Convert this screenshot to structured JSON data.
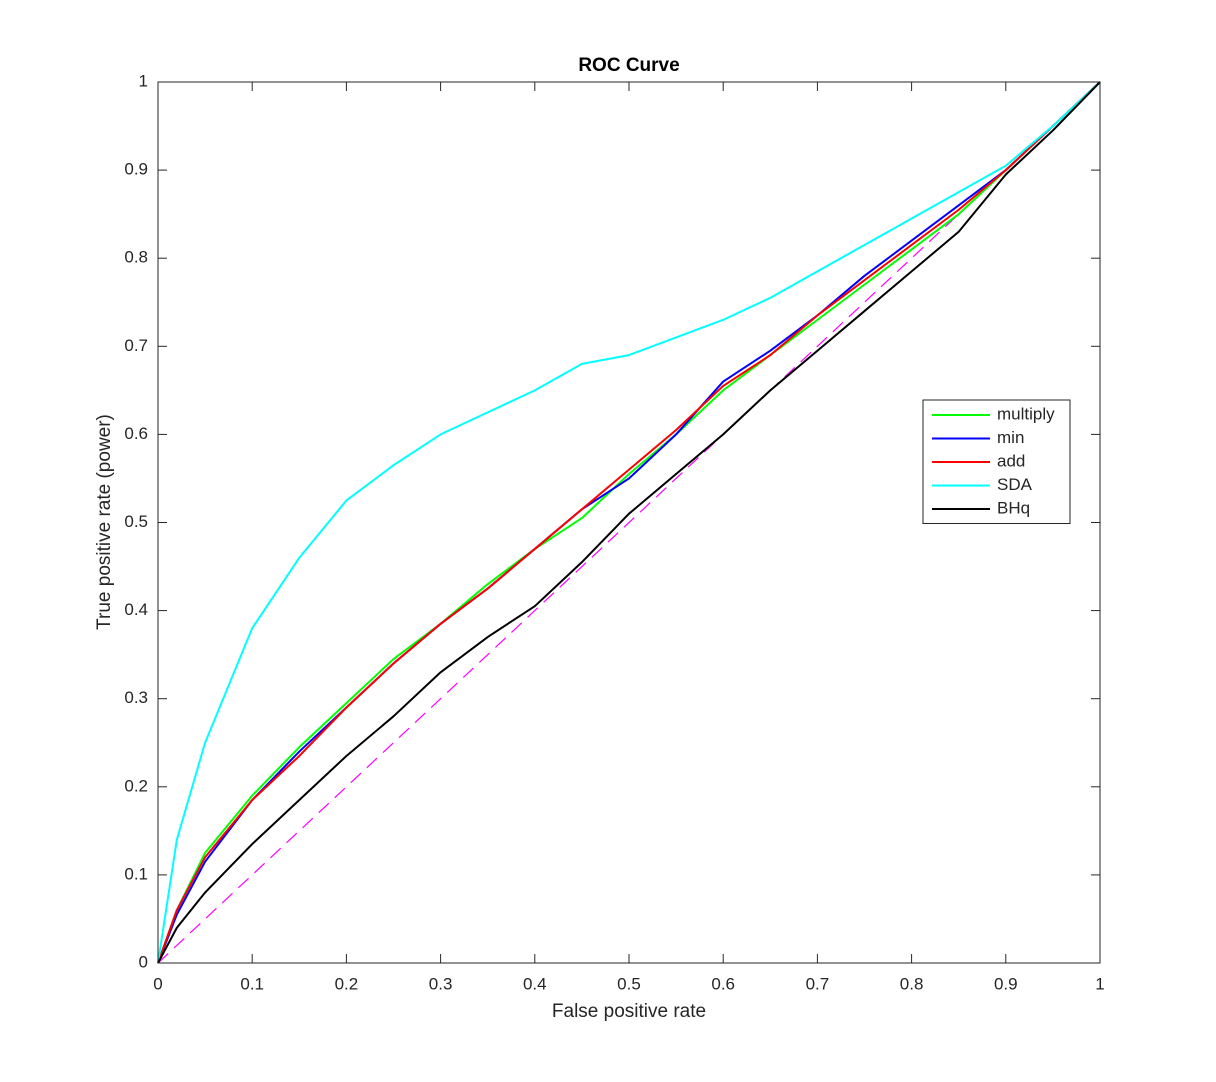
{
  "chart_data": {
    "type": "line",
    "title": "ROC Curve",
    "x_label": "False positive rate",
    "y_label": "True positive rate (power)",
    "xlim": [
      0,
      1
    ],
    "ylim": [
      0,
      1
    ],
    "xticks": [
      0,
      0.1,
      0.2,
      0.3,
      0.4,
      0.5,
      0.6,
      0.7,
      0.8,
      0.9,
      1
    ],
    "yticks": [
      0,
      0.1,
      0.2,
      0.3,
      0.4,
      0.5,
      0.6,
      0.7,
      0.8,
      0.9,
      1
    ],
    "grid": false,
    "legend_position": "right",
    "x": [
      0,
      0.02,
      0.05,
      0.1,
      0.15,
      0.2,
      0.25,
      0.3,
      0.35,
      0.4,
      0.45,
      0.5,
      0.55,
      0.6,
      0.65,
      0.7,
      0.75,
      0.8,
      0.85,
      0.9,
      0.95,
      1
    ],
    "series": [
      {
        "name": "multiply",
        "color": "#00ff00",
        "values": [
          0,
          0.06,
          0.125,
          0.19,
          0.245,
          0.295,
          0.345,
          0.385,
          0.43,
          0.47,
          0.505,
          0.555,
          0.6,
          0.65,
          0.69,
          0.73,
          0.77,
          0.81,
          0.85,
          0.9,
          0.95,
          1
        ]
      },
      {
        "name": "min",
        "color": "#0000ff",
        "values": [
          0,
          0.055,
          0.115,
          0.185,
          0.24,
          0.29,
          0.34,
          0.385,
          0.425,
          0.47,
          0.515,
          0.55,
          0.6,
          0.66,
          0.695,
          0.735,
          0.78,
          0.82,
          0.86,
          0.9,
          0.95,
          1
        ]
      },
      {
        "name": "add",
        "color": "#ff0000",
        "values": [
          0,
          0.06,
          0.12,
          0.185,
          0.235,
          0.29,
          0.34,
          0.385,
          0.425,
          0.47,
          0.515,
          0.56,
          0.605,
          0.655,
          0.69,
          0.735,
          0.775,
          0.815,
          0.855,
          0.9,
          0.95,
          1
        ]
      },
      {
        "name": "SDA",
        "color": "#00ffff",
        "values": [
          0,
          0.14,
          0.25,
          0.38,
          0.46,
          0.525,
          0.565,
          0.6,
          0.625,
          0.65,
          0.68,
          0.69,
          0.71,
          0.73,
          0.755,
          0.785,
          0.815,
          0.845,
          0.875,
          0.905,
          0.95,
          1
        ]
      },
      {
        "name": "BHq",
        "color": "#000000",
        "values": [
          0,
          0.04,
          0.08,
          0.135,
          0.185,
          0.235,
          0.28,
          0.33,
          0.37,
          0.405,
          0.455,
          0.51,
          0.555,
          0.6,
          0.65,
          0.695,
          0.74,
          0.785,
          0.83,
          0.895,
          0.945,
          1
        ]
      }
    ],
    "diagonal": {
      "x": [
        0,
        1
      ],
      "y": [
        0,
        1
      ],
      "color": "#ff00ff",
      "dashed": true
    }
  }
}
